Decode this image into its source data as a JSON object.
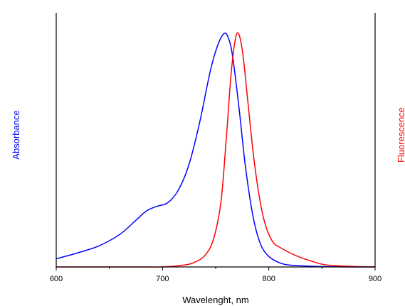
{
  "chart_data": {
    "type": "line",
    "title": "",
    "xlabel": "Wavelenght, nm",
    "ylabel_left": "Absorbance",
    "ylabel_right": "Fluorescence",
    "xlim": [
      600,
      900
    ],
    "ylim": [
      0,
      1.0
    ],
    "x_ticks": [
      600,
      700,
      800,
      900
    ],
    "x_tick_labels": [
      "600",
      "700",
      "800",
      "900"
    ],
    "y_ticks_shown": false,
    "grid": false,
    "legend": "none",
    "series": [
      {
        "label": "Absorbance",
        "axis": "left",
        "color": "#0000ff",
        "x": [
          600,
          620,
          640,
          660,
          675,
          685,
          695,
          705,
          715,
          725,
          735,
          745,
          752,
          758,
          762,
          766,
          772,
          778,
          785,
          792,
          800,
          810,
          820,
          840,
          860,
          880,
          900
        ],
        "y": [
          0.035,
          0.06,
          0.09,
          0.14,
          0.2,
          0.24,
          0.26,
          0.275,
          0.33,
          0.44,
          0.62,
          0.84,
          0.95,
          1.0,
          0.98,
          0.9,
          0.68,
          0.43,
          0.22,
          0.1,
          0.045,
          0.018,
          0.008,
          0.003,
          0.001,
          0.0,
          0.0
        ]
      },
      {
        "label": "Fluorescence",
        "axis": "right",
        "color": "#ff0000",
        "x": [
          600,
          680,
          700,
          720,
          730,
          740,
          748,
          755,
          760,
          765,
          770,
          775,
          780,
          785,
          790,
          795,
          800,
          805,
          810,
          820,
          830,
          840,
          850,
          860,
          880,
          900
        ],
        "y": [
          0.0,
          0.0,
          0.0,
          0.008,
          0.02,
          0.05,
          0.12,
          0.28,
          0.55,
          0.85,
          1.0,
          0.93,
          0.72,
          0.5,
          0.33,
          0.21,
          0.14,
          0.1,
          0.085,
          0.06,
          0.04,
          0.025,
          0.012,
          0.006,
          0.002,
          0.0
        ]
      }
    ]
  }
}
